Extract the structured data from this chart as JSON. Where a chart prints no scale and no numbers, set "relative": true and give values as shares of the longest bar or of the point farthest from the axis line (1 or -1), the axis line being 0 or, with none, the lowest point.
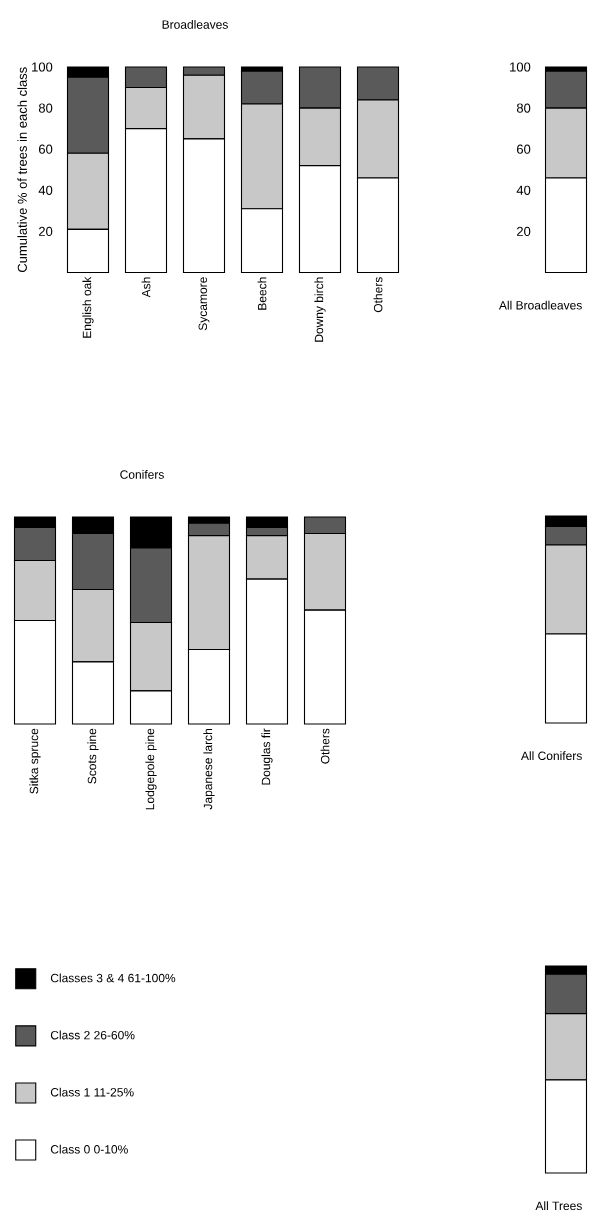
{
  "chart_data": [
    {
      "type": "bar",
      "stacked": true,
      "title": "Broadleaves",
      "ylabel": "Cumulative % of trees in each class",
      "categories": [
        "English oak",
        "Ash",
        "Sycamore",
        "Beech",
        "Downy birch",
        "Others"
      ],
      "ylim": [
        0,
        100
      ],
      "yticks": [
        20,
        40,
        60,
        80,
        100
      ],
      "series": [
        {
          "color": "#ffffff",
          "values": [
            21,
            70,
            65,
            31,
            52,
            46
          ]
        },
        {
          "color": "#c8c8c8",
          "values": [
            37,
            20,
            31,
            51,
            28,
            38
          ]
        },
        {
          "color": "#5a5a5a",
          "values": [
            37,
            10,
            4,
            16,
            20,
            16
          ]
        },
        {
          "color": "#000000",
          "values": [
            5,
            0,
            0,
            2,
            0,
            0
          ]
        }
      ]
    },
    {
      "type": "bar",
      "stacked": true,
      "categories": [
        "All Broadleaves"
      ],
      "ylim": [
        0,
        100
      ],
      "yticks": [
        20,
        40,
        60,
        80,
        100
      ],
      "series": [
        {
          "color": "#ffffff",
          "values": [
            46
          ]
        },
        {
          "color": "#c8c8c8",
          "values": [
            34
          ]
        },
        {
          "color": "#5a5a5a",
          "values": [
            18
          ]
        },
        {
          "color": "#000000",
          "values": [
            2
          ]
        }
      ]
    },
    {
      "type": "bar",
      "stacked": true,
      "relative": true,
      "title": "Conifers",
      "categories": [
        "Sitka spruce",
        "Scots pine",
        "Lodgepole pine",
        "Japanese larch",
        "Douglas fir",
        "Others"
      ],
      "series": [
        {
          "color": "#ffffff",
          "values": [
            0.5,
            0.3,
            0.16,
            0.36,
            0.7,
            0.55
          ]
        },
        {
          "color": "#c8c8c8",
          "values": [
            0.29,
            0.35,
            0.33,
            0.55,
            0.21,
            0.37
          ]
        },
        {
          "color": "#5a5a5a",
          "values": [
            0.16,
            0.27,
            0.36,
            0.06,
            0.04,
            0.08
          ]
        },
        {
          "color": "#000000",
          "values": [
            0.05,
            0.08,
            0.15,
            0.03,
            0.05,
            0
          ]
        }
      ]
    },
    {
      "type": "bar",
      "stacked": true,
      "relative": true,
      "categories": [
        "All Conifers"
      ],
      "series": [
        {
          "color": "#ffffff",
          "values": [
            0.43
          ]
        },
        {
          "color": "#c8c8c8",
          "values": [
            0.43
          ]
        },
        {
          "color": "#5a5a5a",
          "values": [
            0.09
          ]
        },
        {
          "color": "#000000",
          "values": [
            0.05
          ]
        }
      ]
    },
    {
      "type": "bar",
      "stacked": true,
      "relative": true,
      "categories": [
        "All Trees"
      ],
      "legend": "left",
      "series": [
        {
          "name": "Class 0  0-10%",
          "color": "#ffffff",
          "values": [
            0.45
          ]
        },
        {
          "name": "Class 1  11-25%",
          "color": "#c8c8c8",
          "values": [
            0.32
          ]
        },
        {
          "name": "Class 2  26-60%",
          "color": "#5a5a5a",
          "values": [
            0.19
          ]
        },
        {
          "name": "Classes 3 & 4  61-100%",
          "color": "#000000",
          "values": [
            0.04
          ]
        }
      ]
    }
  ]
}
